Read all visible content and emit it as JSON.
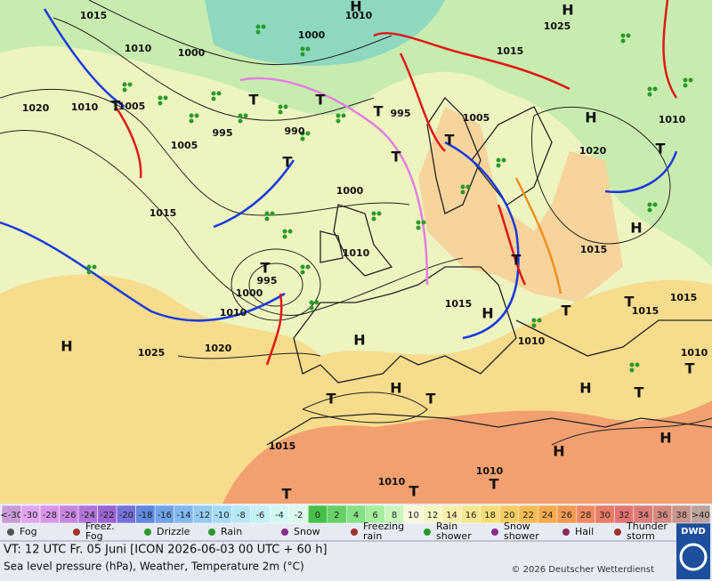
{
  "map": {
    "pressure_labels": [
      "1015",
      "1010",
      "1000",
      "1000",
      "1010",
      "1015",
      "1025",
      "1020",
      "1010",
      "1005",
      "995",
      "990",
      "995",
      "1005",
      "1010",
      "1020",
      "1005",
      "1015",
      "1000",
      "1010",
      "1015",
      "995",
      "1000",
      "1010",
      "1015",
      "1015",
      "1015",
      "1010",
      "1020",
      "1025",
      "1010",
      "1015",
      "1010",
      "1010"
    ],
    "centers": [
      "H",
      "H",
      "T",
      "T",
      "T",
      "T",
      "T",
      "T",
      "T",
      "T",
      "H",
      "H",
      "T",
      "H",
      "H",
      "H",
      "T",
      "T",
      "T",
      "H",
      "T",
      "T",
      "H",
      "T",
      "T",
      "H",
      "H",
      "T",
      "T",
      "T"
    ]
  },
  "scale": {
    "labels": [
      "<-30",
      "-30",
      "-28",
      "-26",
      "-24",
      "-22",
      "-20",
      "-18",
      "-16",
      "-14",
      "-12",
      "-10",
      "-8",
      "-6",
      "-4",
      "-2",
      "0",
      "2",
      "4",
      "6",
      "8",
      "10",
      "12",
      "14",
      "16",
      "18",
      "20",
      "22",
      "24",
      "26",
      "28",
      "30",
      "32",
      "34",
      "36",
      "38",
      ">40"
    ],
    "colors": [
      "#c89ad8",
      "#e2a6f0",
      "#d896ea",
      "#c886e2",
      "#b274da",
      "#9a64d2",
      "#7472da",
      "#6088e0",
      "#70a2e8",
      "#82b8f0",
      "#94caf2",
      "#a6daf6",
      "#b6e8f8",
      "#c4f0f6",
      "#d2f8f4",
      "#dcf8ec",
      "#48c048",
      "#66d064",
      "#86e084",
      "#a6ee9e",
      "#c8f6bc",
      "#f8f8dc",
      "#f6f6c0",
      "#f6eeaa",
      "#f6e690",
      "#f6dc76",
      "#f6cc62",
      "#f6bc54",
      "#f6aa4c",
      "#f49a54",
      "#f08a60",
      "#ea7c6a",
      "#e47472",
      "#dc7c78",
      "#d48a80",
      "#c8968c",
      "#bca49c"
    ]
  },
  "legend": [
    [
      "Fog"
    ],
    [
      "Freez.",
      "Fog"
    ],
    [
      "Drizzle"
    ],
    [
      "Rain"
    ],
    [
      "Snow"
    ],
    [
      "Freezing",
      "rain"
    ],
    [
      "Rain",
      "shower"
    ],
    [
      "Snow",
      "shower"
    ],
    [
      "Hail"
    ],
    [
      "Thunder",
      "storm"
    ]
  ],
  "footer": {
    "line1": "VT: 12 UTC Fr.  05 Juni [ICON 2026-06-03  00 UTC + 60 h]",
    "line2": "Sea level pressure (hPa), Weather, Temperature 2m (°C)",
    "copyright": "© 2026 Deutscher Wetterdienst",
    "logo": "DWD"
  }
}
